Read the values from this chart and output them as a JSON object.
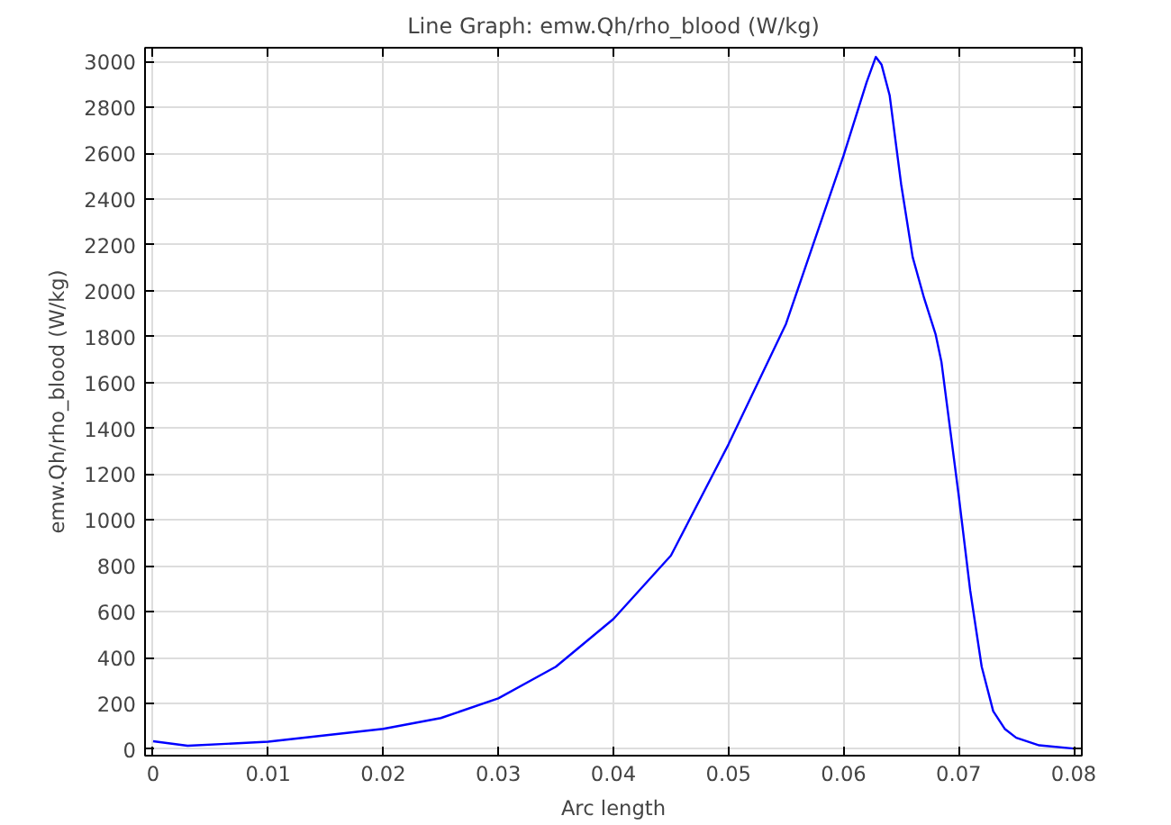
{
  "chart_data": {
    "type": "line",
    "title": "Line Graph: emw.Qh/rho_blood (W/kg)",
    "xlabel": "Arc length",
    "ylabel": "emw.Qh/rho_blood (W/kg)",
    "x": [
      0,
      0.003,
      0.01,
      0.02,
      0.025,
      0.03,
      0.035,
      0.04,
      0.045,
      0.05,
      0.055,
      0.06,
      0.062,
      0.0628,
      0.0633,
      0.064,
      0.065,
      0.066,
      0.067,
      0.068,
      0.0685,
      0.069,
      0.07,
      0.071,
      0.072,
      0.073,
      0.074,
      0.075,
      0.077,
      0.08
    ],
    "series": [
      {
        "color": "#0000ff",
        "values": [
          35,
          15,
          33,
          89,
          136,
          222,
          360,
          568,
          845,
          1330,
          1856,
          2590,
          2909,
          3020,
          2986,
          2853,
          2465,
          2147,
          1967,
          1809,
          1690,
          1496,
          1108,
          693,
          360,
          166,
          89,
          50,
          17,
          3
        ]
      }
    ],
    "xlim": [
      -0.0007,
      0.0807
    ],
    "ylim": [
      -28,
      3060
    ],
    "xticks": [
      0,
      0.01,
      0.02,
      0.03,
      0.04,
      0.05,
      0.06,
      0.07,
      0.08
    ],
    "yticks": [
      0,
      200,
      400,
      600,
      800,
      1000,
      1200,
      1400,
      1600,
      1800,
      2000,
      2200,
      2400,
      2600,
      2800,
      3000
    ],
    "grid": true,
    "marker": "none",
    "line_style": "solid"
  }
}
